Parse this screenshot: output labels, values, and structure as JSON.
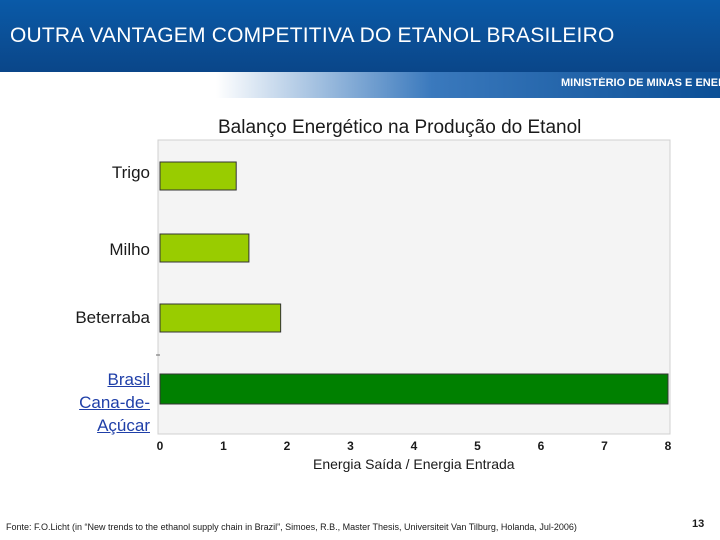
{
  "header": {
    "title": "OUTRA VANTAGEM COMPETITIVA DO ETANOL BRASILEIRO",
    "ministry": "MINISTÉRIO DE MINAS E ENERGIA"
  },
  "chart_data": {
    "type": "bar",
    "orientation": "horizontal",
    "title": "Balanço Energético na Produção do Etanol",
    "xlabel": "Energia Saída / Energia Entrada",
    "ylabel": "",
    "categories": [
      "Trigo",
      "Milho",
      "Beterraba",
      "Brasil Cana-de-Açúcar"
    ],
    "category_lines": [
      [
        "Trigo"
      ],
      [
        "Milho"
      ],
      [
        "Beterraba"
      ],
      [
        "Brasil",
        "Cana-de-",
        "Açúcar"
      ]
    ],
    "values": [
      1.2,
      1.4,
      1.9,
      8.0
    ],
    "xlim": [
      0,
      8
    ],
    "xticks": [
      "0",
      "1",
      "2",
      "3",
      "4",
      "5",
      "6",
      "7",
      "8"
    ],
    "colors": {
      "default_bar": "#99cc00",
      "highlight_bar": "#008000",
      "plot_background": "#f4f4f4",
      "bar_border": "#333333"
    },
    "highlight_index": 3,
    "grid": false
  },
  "footer": {
    "source": "Fonte: F.O.Licht (in “New trends to the ethanol supply chain in Brazil”, Simoes, R.B., Master Thesis, Universiteit Van Tilburg, Holanda, Jul-2006)",
    "page_number": "13"
  }
}
